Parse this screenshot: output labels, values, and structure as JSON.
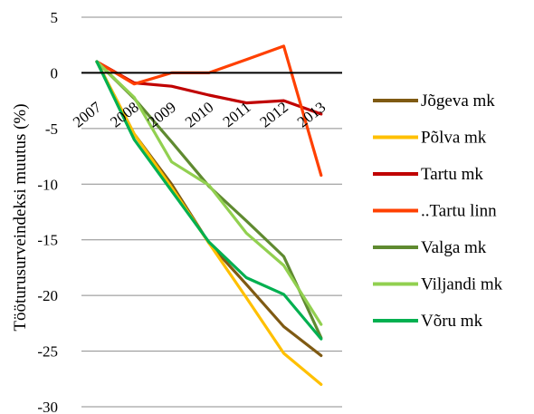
{
  "chart_data": {
    "type": "line",
    "title": "",
    "xlabel": "",
    "ylabel": "Tööturusurveindeksi muutus (%)",
    "x": [
      "2007",
      "2008",
      "2009",
      "2010",
      "2011",
      "2012",
      "2013"
    ],
    "ylim": [
      -30,
      5
    ],
    "yticks": [
      5,
      0,
      -5,
      -10,
      -15,
      -20,
      -25,
      -30
    ],
    "grid": true,
    "legend_position": "right",
    "series": [
      {
        "name": "Jõgeva mk",
        "color": "#7f5a13",
        "values": [
          1,
          -5.5,
          -10,
          -15.3,
          -19,
          -22.8,
          -25.4
        ]
      },
      {
        "name": "Põlva mk",
        "color": "#ffc000",
        "values": [
          1,
          -5.5,
          -10.3,
          -15.3,
          -20.2,
          -25.2,
          -28
        ]
      },
      {
        "name": "Tartu mk",
        "color": "#c00000",
        "values": [
          1,
          -0.9,
          -1.2,
          -2,
          -2.7,
          -2.5,
          -3.7
        ]
      },
      {
        "name": "..Tartu linn",
        "color": "#ff4000",
        "values": [
          1,
          -1,
          0,
          0,
          1.2,
          2.4,
          -9.2
        ]
      },
      {
        "name": "Valga mk",
        "color": "#5f8a30",
        "values": [
          1,
          -2.3,
          -6.2,
          -10.2,
          -13.3,
          -16.5,
          -23.8
        ]
      },
      {
        "name": "Viljandi mk",
        "color": "#92d050",
        "values": [
          1,
          -2.2,
          -8,
          -10.1,
          -14.4,
          -17.3,
          -22.6
        ]
      },
      {
        "name": "Võru mk",
        "color": "#00b050",
        "values": [
          1,
          -6,
          -10.6,
          -15.2,
          -18.4,
          -19.9,
          -23.9
        ]
      }
    ]
  }
}
